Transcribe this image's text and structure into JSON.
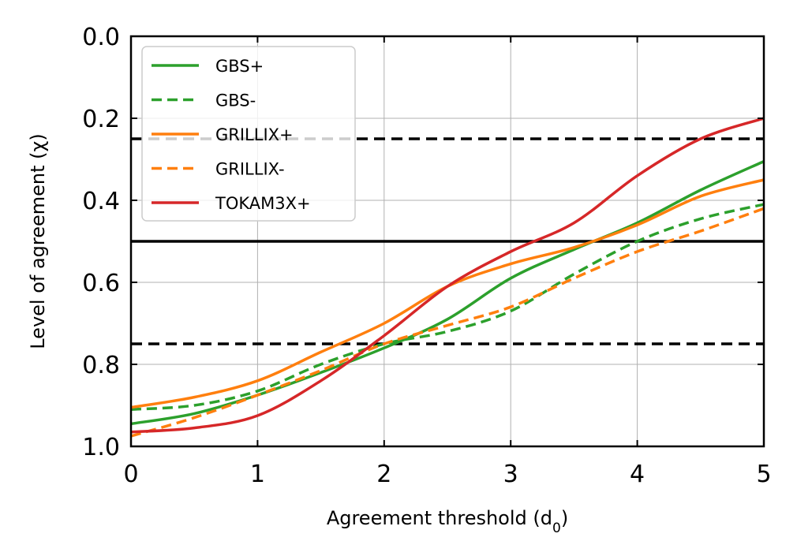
{
  "chart_data": {
    "type": "line",
    "xlabel": "Agreement threshold (d",
    "xlabel_sub": "0",
    "xlabel_end": ")",
    "ylabel": "Level of agreement (χ)",
    "xlim": [
      0,
      5
    ],
    "ylim": [
      0,
      1
    ],
    "y_inverted": true,
    "x_ticks": [
      0,
      1,
      2,
      3,
      4,
      5
    ],
    "x_tick_labels": [
      "0",
      "1",
      "2",
      "3",
      "4",
      "5"
    ],
    "y_ticks": [
      0,
      0.2,
      0.4,
      0.6,
      0.8,
      1.0
    ],
    "y_tick_labels": [
      "0.0",
      "0.2",
      "0.4",
      "0.6",
      "0.8",
      "1.0"
    ],
    "grid": true,
    "legend_position": "top-left",
    "reference_lines": [
      {
        "y": 0.25,
        "style": "dashed",
        "color": "#000000"
      },
      {
        "y": 0.5,
        "style": "solid",
        "color": "#000000"
      },
      {
        "y": 0.75,
        "style": "dashed",
        "color": "#000000"
      }
    ],
    "series": [
      {
        "name": "GBS+",
        "color": "#2ca02c",
        "dash": "solid",
        "x": [
          0,
          0.5,
          1,
          1.5,
          2,
          2.5,
          3,
          3.5,
          4,
          4.5,
          5
        ],
        "y": [
          0.945,
          0.92,
          0.875,
          0.82,
          0.76,
          0.69,
          0.59,
          0.52,
          0.455,
          0.375,
          0.305
        ]
      },
      {
        "name": "GBS-",
        "color": "#2ca02c",
        "dash": "dashed",
        "x": [
          0,
          0.5,
          1,
          1.5,
          2,
          2.5,
          3,
          3.5,
          4,
          4.5,
          5
        ],
        "y": [
          0.91,
          0.9,
          0.865,
          0.8,
          0.75,
          0.72,
          0.67,
          0.58,
          0.5,
          0.445,
          0.41
        ]
      },
      {
        "name": "GRILLIX+",
        "color": "#ff7f0e",
        "dash": "solid",
        "x": [
          0,
          0.5,
          1,
          1.5,
          2,
          2.5,
          3,
          3.5,
          4,
          4.5,
          5
        ],
        "y": [
          0.905,
          0.88,
          0.84,
          0.77,
          0.7,
          0.61,
          0.555,
          0.515,
          0.46,
          0.39,
          0.35
        ]
      },
      {
        "name": "GRILLIX-",
        "color": "#ff7f0e",
        "dash": "dashed",
        "x": [
          0,
          0.5,
          1,
          1.5,
          2,
          2.5,
          3,
          3.5,
          4,
          4.5,
          5
        ],
        "y": [
          0.975,
          0.93,
          0.875,
          0.815,
          0.75,
          0.705,
          0.66,
          0.59,
          0.525,
          0.475,
          0.42
        ]
      },
      {
        "name": "TOKAM3X+",
        "color": "#d62728",
        "dash": "solid",
        "x": [
          0,
          0.5,
          1,
          1.5,
          2,
          2.5,
          3,
          3.5,
          4,
          4.5,
          5
        ],
        "y": [
          0.965,
          0.955,
          0.925,
          0.84,
          0.73,
          0.61,
          0.525,
          0.455,
          0.34,
          0.25,
          0.2
        ]
      }
    ]
  }
}
